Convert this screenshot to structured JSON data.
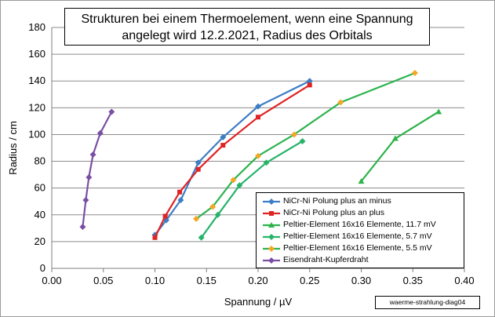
{
  "chart_data": {
    "type": "line",
    "title_line1": "Strukturen bei einem Thermoelement, wenn eine Spannung",
    "title_line2": "angelegt wird  12.2.2021, Radius des Orbitals",
    "xlabel": "Spannung / µV",
    "ylabel": "Radius / cm",
    "xlim": [
      0,
      0.4
    ],
    "ylim": [
      0,
      180
    ],
    "xticks": [
      "0.00",
      "0.05",
      "0.10",
      "0.15",
      "0.20",
      "0.25",
      "0.30",
      "0.35",
      "0.40"
    ],
    "yticks": [
      "0",
      "20",
      "40",
      "60",
      "80",
      "100",
      "120",
      "140",
      "160",
      "180"
    ],
    "grid": "horizontal",
    "legend_position": "bottom-right",
    "series": [
      {
        "name": "NiCr-Ni Polung plus an minus",
        "color": "#3c7dc4",
        "marker": "diamond",
        "points": [
          [
            0.1,
            25
          ],
          [
            0.111,
            36
          ],
          [
            0.125,
            51
          ],
          [
            0.142,
            79
          ],
          [
            0.166,
            98
          ],
          [
            0.2,
            121
          ],
          [
            0.25,
            140
          ]
        ]
      },
      {
        "name": "NiCr-Ni Polung plus an plus",
        "color": "#e02424",
        "marker": "square",
        "points": [
          [
            0.1,
            23
          ],
          [
            0.11,
            39
          ],
          [
            0.124,
            57
          ],
          [
            0.142,
            74
          ],
          [
            0.166,
            92
          ],
          [
            0.2,
            113
          ],
          [
            0.25,
            137
          ]
        ]
      },
      {
        "name": "Peltier-Element 16x16 Elemente, 11.7 mV",
        "color": "#2db34a",
        "marker": "triangle",
        "points": [
          [
            0.3,
            65
          ],
          [
            0.333,
            97
          ],
          [
            0.375,
            117
          ]
        ]
      },
      {
        "name": "Peltier-Element 16x16 Elemente, 5.7 mV",
        "color": "#26b36a",
        "marker": "diamond",
        "points": [
          [
            0.145,
            23
          ],
          [
            0.161,
            40
          ],
          [
            0.182,
            62
          ],
          [
            0.208,
            79
          ],
          [
            0.243,
            95
          ]
        ]
      },
      {
        "name": "Peltier-Element 16x16 Elemente, 5.5 mV",
        "color": "#2eb34f",
        "marker": "diamond",
        "marker_color": "#f5a623",
        "points": [
          [
            0.14,
            37
          ],
          [
            0.156,
            46
          ],
          [
            0.176,
            66
          ],
          [
            0.2,
            84
          ],
          [
            0.235,
            100
          ],
          [
            0.28,
            124
          ],
          [
            0.352,
            146
          ]
        ]
      },
      {
        "name": "Eisendraht-Kupferdraht",
        "color": "#7a4fa3",
        "marker": "diamond",
        "points": [
          [
            0.03,
            31
          ],
          [
            0.033,
            51
          ],
          [
            0.036,
            68
          ],
          [
            0.04,
            85
          ],
          [
            0.047,
            101
          ],
          [
            0.058,
            117
          ]
        ]
      }
    ],
    "annotation": "waerme-strahlung-diag04"
  }
}
